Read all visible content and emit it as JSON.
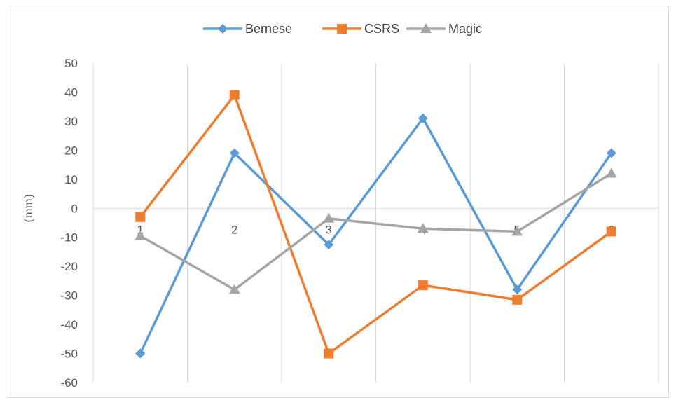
{
  "chart_data": {
    "type": "line",
    "title": "",
    "xlabel": "",
    "ylabel": "(mm)",
    "categories": [
      "1",
      "2",
      "3",
      "4",
      "5",
      "6"
    ],
    "ylim": [
      -60,
      50
    ],
    "yticks": [
      50,
      40,
      30,
      20,
      10,
      0,
      -10,
      -20,
      -30,
      -40,
      -50,
      -60
    ],
    "grid": "vertical",
    "legend_position": "top",
    "series": [
      {
        "name": "Bernese",
        "color": "#5b9bd5",
        "marker": "diamond",
        "values": [
          -50,
          19,
          -12.5,
          31,
          -28,
          19
        ]
      },
      {
        "name": "CSRS",
        "color": "#ed7d31",
        "marker": "square",
        "values": [
          -3,
          39,
          -50,
          -26.5,
          -31.5,
          -8
        ]
      },
      {
        "name": "Magic",
        "color": "#a5a5a5",
        "marker": "triangle",
        "values": [
          -9.5,
          -28,
          -3.5,
          -7,
          -8,
          12
        ]
      }
    ]
  }
}
